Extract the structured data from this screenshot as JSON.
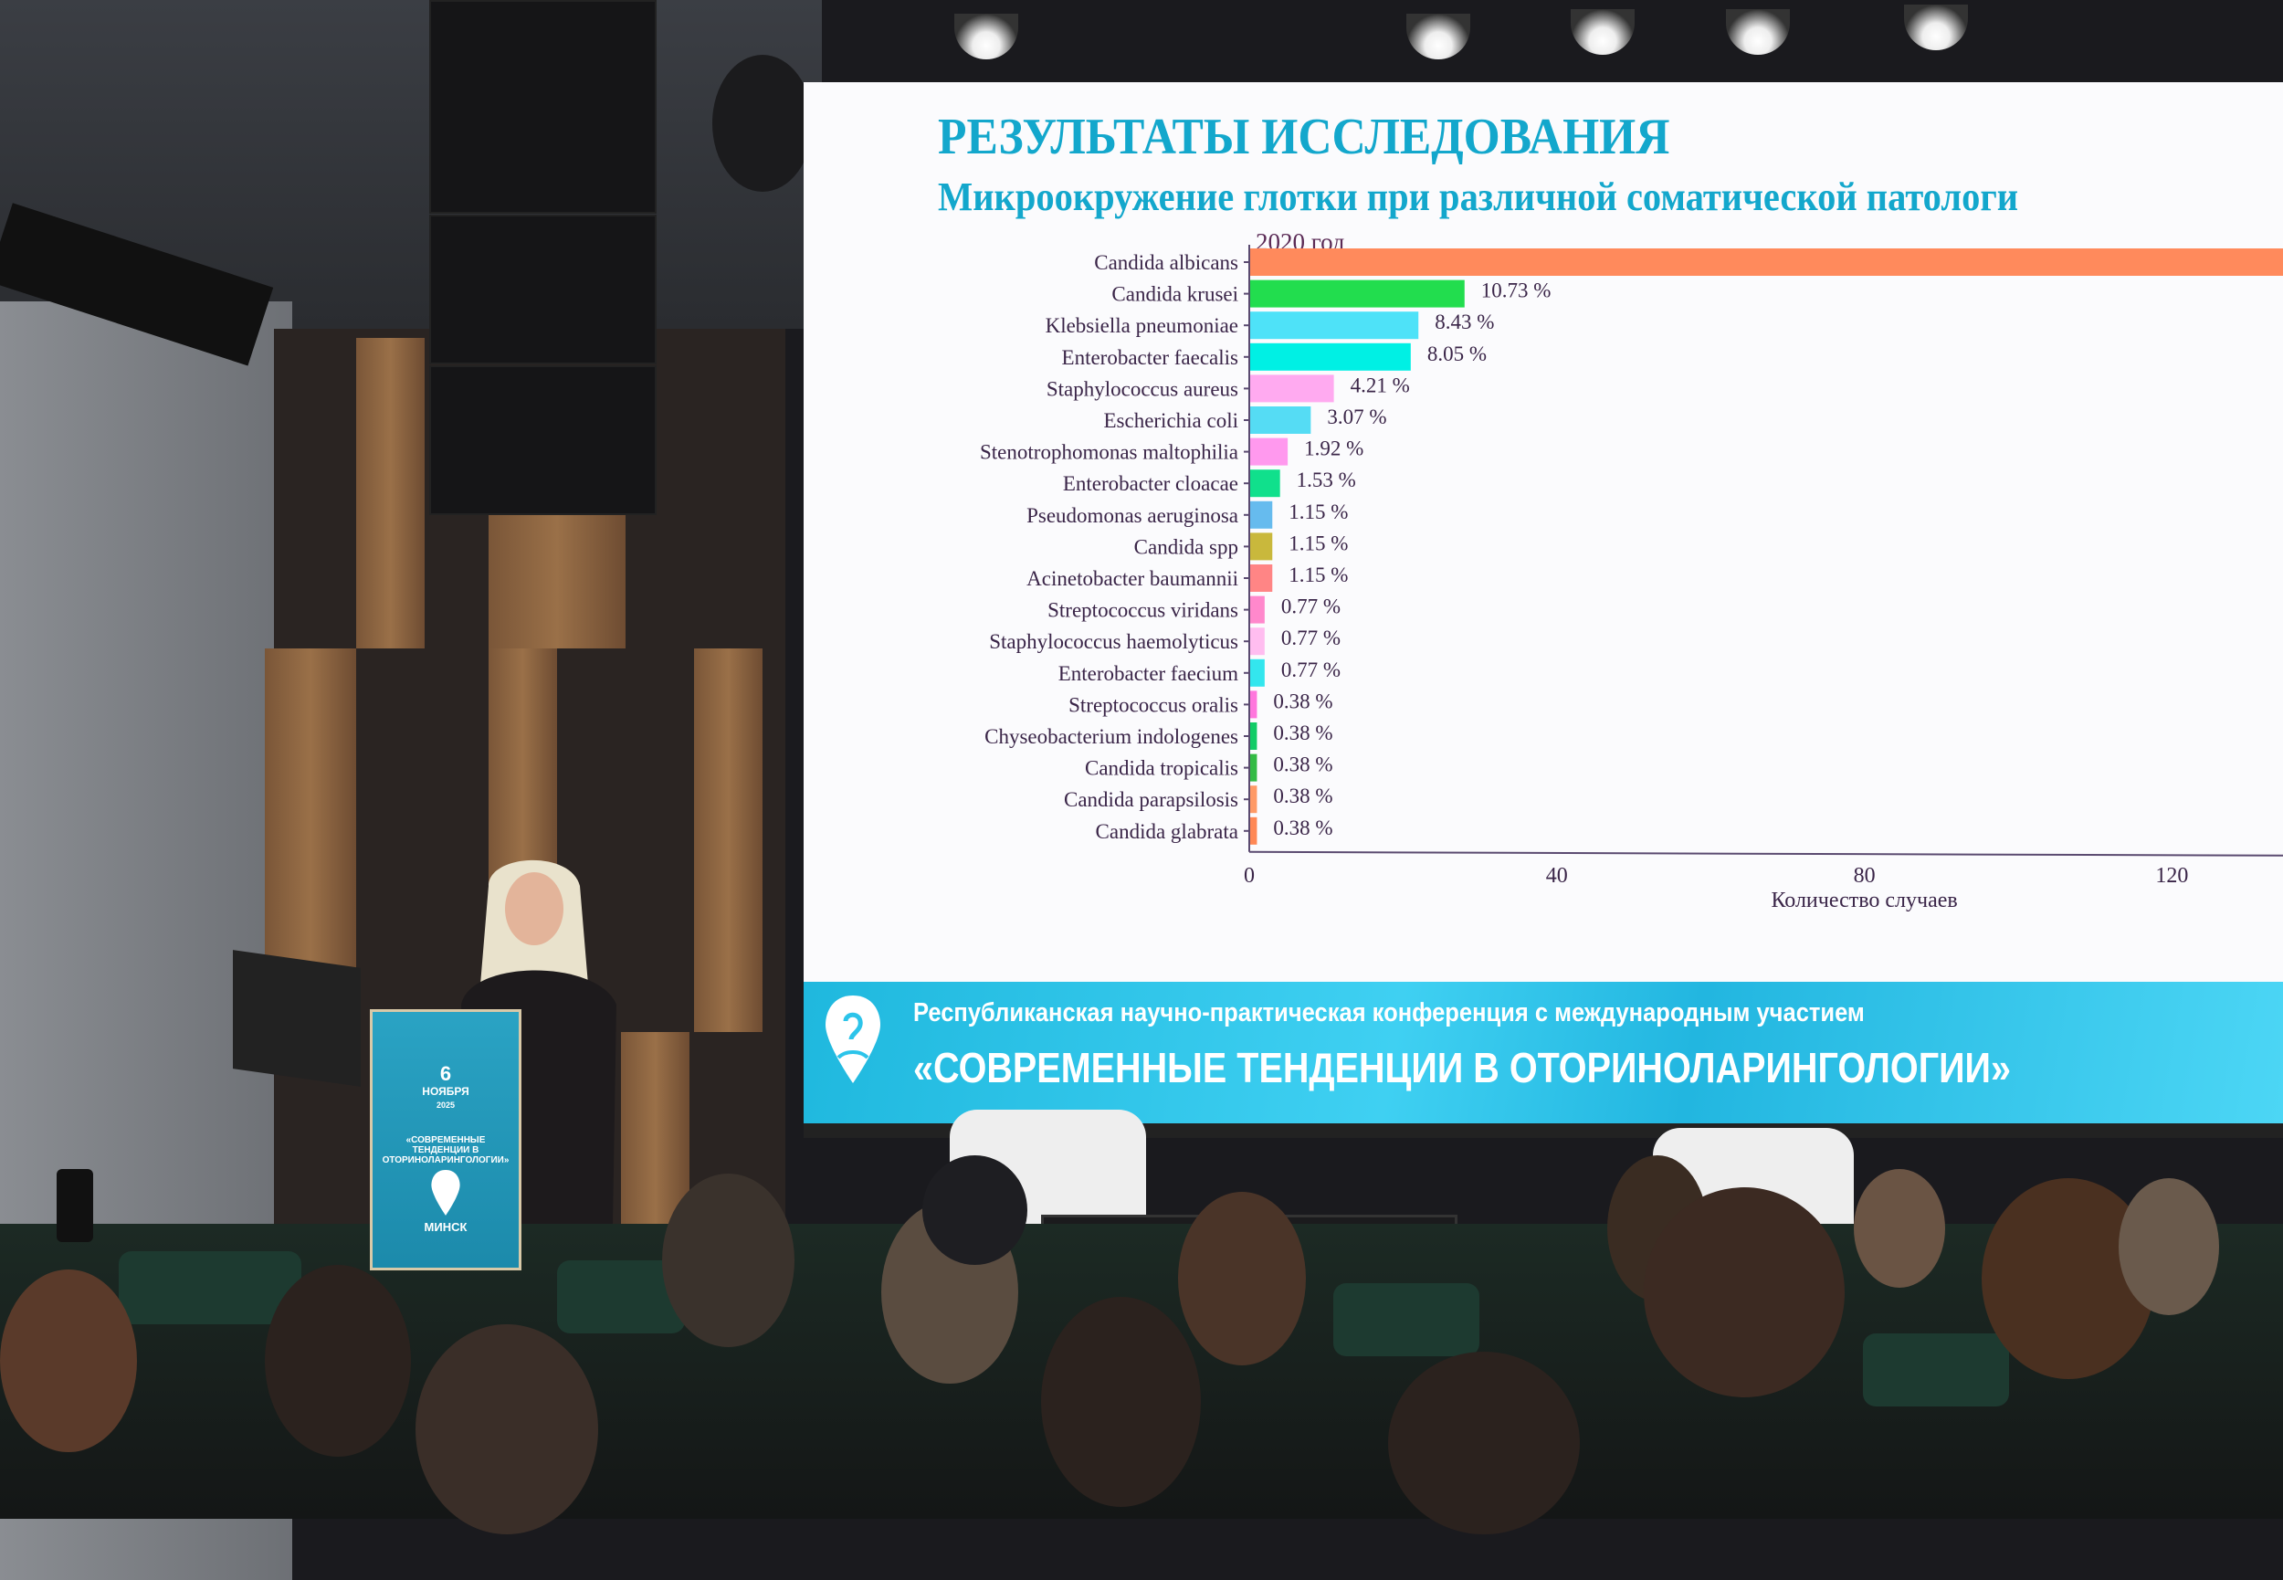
{
  "slide": {
    "title": "РЕЗУЛЬТАТЫ ИССЛЕДОВАНИЯ",
    "subtitle": "Микроокружение  глотки при различной соматической  патологи",
    "year": "2020 год"
  },
  "banner": {
    "line1": "Республиканская научно-практическая конференция с международным участием",
    "line2": "«СОВРЕМЕННЫЕ ТЕНДЕНЦИИ В ОТОРИНОЛАРИНГОЛОГИИ»",
    "accent": "#2cc4ea"
  },
  "podium": {
    "day": "6",
    "month": "НОЯБРЯ",
    "year": "2025",
    "title": "«СОВРЕМЕННЫЕ ТЕНДЕНЦИИ В ОТОРИНОЛАРИНГОЛОГИИ»",
    "city": "МИНСК"
  },
  "chart_data": {
    "type": "bar",
    "orientation": "horizontal",
    "title": "2020 год",
    "xlabel": "Количество случаев",
    "ylabel": "",
    "xticks": [
      0,
      40,
      80,
      120
    ],
    "xlim": [
      0,
      135
    ],
    "grid": false,
    "categories": [
      "Candida albicans",
      "Candida krusei",
      "Klebsiella pneumoniae",
      "Enterobacter faecalis",
      "Staphylococcus aureus",
      "Escherichia coli",
      "Stenotrophomonas maltophilia",
      "Enterobacter cloacae",
      "Pseudomonas aeruginosa",
      "Candida spp",
      "Acinetobacter baumannii",
      "Streptococcus viridans",
      "Staphylococcus haemolyticus",
      "Enterobacter faecium",
      "Streptococcus oralis",
      "Chyseobacterium indologenes",
      "Candida tropicalis",
      "Candida parapsilosis",
      "Candida glabrata"
    ],
    "values": [
      142,
      28,
      22,
      21,
      11,
      8,
      5,
      4,
      3,
      3,
      3,
      2,
      2,
      2,
      1,
      1,
      1,
      1,
      1
    ],
    "labels": [
      "",
      "10.73 %",
      "8.43 %",
      "8.05 %",
      "4.21 %",
      "3.07 %",
      "1.92 %",
      "1.53 %",
      "1.15 %",
      "1.15 %",
      "1.15 %",
      "0.77 %",
      "0.77 %",
      "0.77 %",
      "0.38 %",
      "0.38 %",
      "0.38 %",
      "0.38 %",
      "0.38 %"
    ],
    "colors": [
      "#ff8a5c",
      "#22dd4e",
      "#4ee2f8",
      "#00f0e4",
      "#ffaaf0",
      "#55dcf4",
      "#ff99ee",
      "#10e08c",
      "#66bbee",
      "#c9b83c",
      "#ff8585",
      "#ff88cc",
      "#ffbdf0",
      "#33e6ee",
      "#ff77dd",
      "#11cc66",
      "#33bb44",
      "#ff9a66",
      "#ff8855"
    ]
  }
}
